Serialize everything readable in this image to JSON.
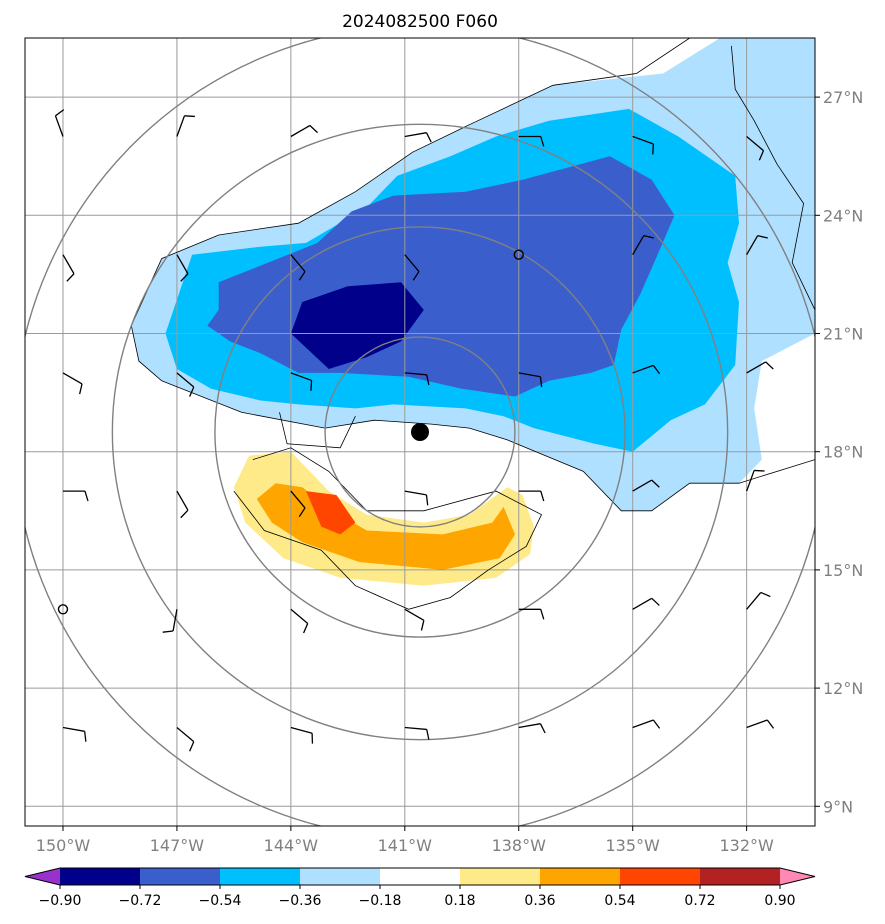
{
  "chart_data": {
    "type": "heatmap",
    "title": "2024082500 F060",
    "projection": "plate carree map",
    "grid": true,
    "xlim": [
      -151,
      -130.2
    ],
    "ylim": [
      8.5,
      28.5
    ],
    "x_ticks": [
      {
        "value": -150,
        "label": "150°W"
      },
      {
        "value": -147,
        "label": "147°W"
      },
      {
        "value": -144,
        "label": "144°W"
      },
      {
        "value": -141,
        "label": "141°W"
      },
      {
        "value": -138,
        "label": "138°W"
      },
      {
        "value": -135,
        "label": "135°W"
      },
      {
        "value": -132,
        "label": "132°W"
      }
    ],
    "y_ticks": [
      {
        "value": 9,
        "label": "9°N"
      },
      {
        "value": 12,
        "label": "12°N"
      },
      {
        "value": 15,
        "label": "15°N"
      },
      {
        "value": 18,
        "label": "18°N"
      },
      {
        "value": 21,
        "label": "21°N"
      },
      {
        "value": 24,
        "label": "24°N"
      },
      {
        "value": 27,
        "label": "27°N"
      }
    ],
    "center": {
      "lon": -140.6,
      "lat": 18.5
    },
    "range_rings_deg": [
      2.5,
      5.4,
      8.1,
      10.7
    ],
    "colorbar": {
      "orientation": "horizontal",
      "extend": "both",
      "levels": [
        -0.9,
        -0.72,
        -0.54,
        -0.36,
        -0.18,
        0.18,
        0.36,
        0.54,
        0.72,
        0.9
      ],
      "tick_labels": [
        "−0.90",
        "−0.72",
        "−0.54",
        "−0.36",
        "−0.18",
        "0.18",
        "0.36",
        "0.54",
        "0.72",
        "0.90"
      ],
      "colors": [
        "#9932cc",
        "#00008b",
        "#3a5fcd",
        "#00bfff",
        "#b0e0ff",
        "#ffffff",
        "#ffea8a",
        "#ffa500",
        "#ff4500",
        "#b22222",
        "#ff88b4"
      ]
    },
    "filled_contours": [
      {
        "level": -0.18,
        "color": "#b0e0ff",
        "polygons": [
          [
            [
              -148.2,
              21.2
            ],
            [
              -147.4,
              22.9
            ],
            [
              -145.9,
              23.5
            ],
            [
              -143.8,
              23.8
            ],
            [
              -142.3,
              24.6
            ],
            [
              -140.8,
              25.6
            ],
            [
              -139.3,
              26.3
            ],
            [
              -137.1,
              27.3
            ],
            [
              -134.2,
              27.6
            ],
            [
              -132.7,
              28.5
            ],
            [
              -130.2,
              28.5
            ],
            [
              -130.2,
              21.0
            ],
            [
              -130.8,
              20.7
            ],
            [
              -131.6,
              20.3
            ],
            [
              -131.8,
              19.1
            ],
            [
              -131.6,
              17.8
            ],
            [
              -132.2,
              17.2
            ],
            [
              -133.5,
              17.2
            ],
            [
              -134.5,
              16.5
            ],
            [
              -135.3,
              16.5
            ],
            [
              -136.3,
              17.5
            ],
            [
              -138.3,
              18.3
            ],
            [
              -139.3,
              18.6
            ],
            [
              -140.3,
              18.7
            ],
            [
              -141.8,
              18.8
            ],
            [
              -143.1,
              18.6
            ],
            [
              -145.3,
              19.0
            ],
            [
              -147.4,
              19.8
            ],
            [
              -148.0,
              20.3
            ]
          ]
        ]
      },
      {
        "level": -0.36,
        "color": "#00bfff",
        "polygons": [
          [
            [
              -147.3,
              21.0
            ],
            [
              -146.6,
              23.0
            ],
            [
              -144.8,
              23.2
            ],
            [
              -143.6,
              23.3
            ],
            [
              -142.0,
              24.2
            ],
            [
              -141.2,
              25.0
            ],
            [
              -139.8,
              25.5
            ],
            [
              -138.6,
              26.0
            ],
            [
              -137.2,
              26.4
            ],
            [
              -135.1,
              26.7
            ],
            [
              -133.8,
              26.0
            ],
            [
              -132.3,
              25.0
            ],
            [
              -132.2,
              23.8
            ],
            [
              -132.5,
              22.8
            ],
            [
              -132.2,
              21.8
            ],
            [
              -132.3,
              20.2
            ],
            [
              -133.1,
              19.2
            ],
            [
              -134.0,
              18.8
            ],
            [
              -135.0,
              18.0
            ],
            [
              -136.0,
              18.2
            ],
            [
              -137.6,
              18.6
            ],
            [
              -138.4,
              18.9
            ],
            [
              -139.4,
              19.1
            ],
            [
              -141.3,
              19.2
            ],
            [
              -142.3,
              19.1
            ],
            [
              -143.8,
              19.2
            ],
            [
              -144.8,
              19.3
            ],
            [
              -146.1,
              19.6
            ],
            [
              -147.0,
              20.1
            ]
          ]
        ]
      },
      {
        "level": -0.54,
        "color": "#3a5fcd",
        "polygons": [
          [
            [
              -146.2,
              21.2
            ],
            [
              -145.9,
              21.6
            ],
            [
              -145.9,
              22.3
            ],
            [
              -144.6,
              22.8
            ],
            [
              -143.3,
              23.3
            ],
            [
              -142.4,
              24.1
            ],
            [
              -141.3,
              24.5
            ],
            [
              -139.4,
              24.6
            ],
            [
              -137.9,
              24.9
            ],
            [
              -135.6,
              25.5
            ],
            [
              -134.5,
              24.9
            ],
            [
              -133.9,
              24.0
            ],
            [
              -134.3,
              23.1
            ],
            [
              -134.8,
              22.0
            ],
            [
              -135.3,
              21.1
            ],
            [
              -135.5,
              20.2
            ],
            [
              -136.1,
              20.0
            ],
            [
              -137.2,
              19.8
            ],
            [
              -138.1,
              19.4
            ],
            [
              -139.5,
              19.6
            ],
            [
              -140.9,
              19.9
            ],
            [
              -142.7,
              20.0
            ],
            [
              -143.8,
              20.0
            ],
            [
              -144.8,
              20.5
            ],
            [
              -145.6,
              20.8
            ]
          ]
        ]
      },
      {
        "level": -0.72,
        "color": "#00008b",
        "polygons": [
          [
            [
              -144.0,
              21.0
            ],
            [
              -143.7,
              21.8
            ],
            [
              -142.5,
              22.2
            ],
            [
              -141.1,
              22.3
            ],
            [
              -140.5,
              21.6
            ],
            [
              -141.1,
              20.8
            ],
            [
              -142.0,
              20.4
            ],
            [
              -143.0,
              20.1
            ]
          ]
        ]
      },
      {
        "level": 0.18,
        "color": "#ffea8a",
        "polygons": [
          [
            [
              -145.5,
              17.1
            ],
            [
              -145.1,
              17.9
            ],
            [
              -144.0,
              18.0
            ],
            [
              -143.0,
              17.0
            ],
            [
              -142.0,
              16.4
            ],
            [
              -140.5,
              16.2
            ],
            [
              -139.3,
              16.4
            ],
            [
              -138.3,
              17.1
            ],
            [
              -137.9,
              16.9
            ],
            [
              -137.6,
              16.1
            ],
            [
              -137.7,
              15.4
            ],
            [
              -138.6,
              14.8
            ],
            [
              -140.5,
              14.6
            ],
            [
              -142.7,
              14.8
            ],
            [
              -144.2,
              15.3
            ],
            [
              -145.2,
              16.2
            ]
          ]
        ]
      },
      {
        "level": 0.36,
        "color": "#ffa500",
        "polygons": [
          [
            [
              -144.9,
              16.8
            ],
            [
              -144.4,
              17.2
            ],
            [
              -143.7,
              17.1
            ],
            [
              -142.9,
              16.5
            ],
            [
              -142.0,
              16.0
            ],
            [
              -140.0,
              15.9
            ],
            [
              -138.7,
              16.2
            ],
            [
              -138.4,
              16.6
            ],
            [
              -138.1,
              15.9
            ],
            [
              -138.5,
              15.3
            ],
            [
              -140.0,
              15.0
            ],
            [
              -142.2,
              15.2
            ],
            [
              -143.7,
              15.7
            ],
            [
              -144.5,
              16.2
            ]
          ]
        ]
      },
      {
        "level": 0.54,
        "color": "#ff4500",
        "polygons": [
          [
            [
              -143.6,
              17.0
            ],
            [
              -142.8,
              16.9
            ],
            [
              -142.3,
              16.2
            ],
            [
              -142.7,
              15.9
            ],
            [
              -143.2,
              16.1
            ]
          ]
        ]
      }
    ],
    "contour_lines": [
      [
        [
          -148.2,
          21.2
        ],
        [
          -147.4,
          22.9
        ],
        [
          -145.9,
          23.5
        ],
        [
          -143.8,
          23.8
        ],
        [
          -142.3,
          24.6
        ],
        [
          -140.8,
          25.6
        ],
        [
          -139.3,
          26.3
        ],
        [
          -137.1,
          27.3
        ],
        [
          -134.9,
          27.6
        ],
        [
          -133.5,
          28.5
        ]
      ],
      [
        [
          -132.4,
          28.3
        ],
        [
          -132.3,
          27.2
        ],
        [
          -131.8,
          26.4
        ],
        [
          -131.2,
          25.3
        ],
        [
          -130.5,
          24.3
        ],
        [
          -130.8,
          22.8
        ],
        [
          -130.2,
          21.6
        ]
      ],
      [
        [
          -130.2,
          17.8
        ],
        [
          -132.2,
          17.2
        ],
        [
          -133.5,
          17.2
        ],
        [
          -134.5,
          16.5
        ],
        [
          -135.3,
          16.5
        ],
        [
          -136.3,
          17.5
        ],
        [
          -138.3,
          18.3
        ],
        [
          -139.3,
          18.6
        ],
        [
          -140.3,
          18.7
        ],
        [
          -141.8,
          18.8
        ],
        [
          -143.1,
          18.6
        ],
        [
          -145.3,
          19.0
        ],
        [
          -147.4,
          19.8
        ],
        [
          -148.0,
          20.3
        ],
        [
          -148.2,
          21.2
        ]
      ],
      [
        [
          -144.3,
          19.0
        ],
        [
          -144.1,
          18.2
        ],
        [
          -142.7,
          18.1
        ],
        [
          -142.3,
          18.9
        ]
      ],
      [
        [
          -145.5,
          17.0
        ],
        [
          -144.7,
          16.0
        ],
        [
          -143.2,
          15.5
        ],
        [
          -142.3,
          14.6
        ],
        [
          -140.9,
          14.0
        ],
        [
          -139.8,
          14.3
        ],
        [
          -138.8,
          15.0
        ],
        [
          -137.8,
          15.6
        ],
        [
          -137.4,
          16.4
        ],
        [
          -138.6,
          17.0
        ],
        [
          -140.5,
          16.5
        ],
        [
          -142.0,
          16.5
        ],
        [
          -143.0,
          17.5
        ],
        [
          -144.0,
          18.1
        ],
        [
          -145.0,
          17.8
        ]
      ]
    ],
    "station_marks": [
      {
        "lon": -138.0,
        "lat": 23.0
      },
      {
        "lon": -150.0,
        "lat": 14.0
      }
    ],
    "wind_barbs": [
      {
        "lon": -150,
        "lat": 26.0,
        "dir": 340
      },
      {
        "lon": -147,
        "lat": 26.0,
        "dir": 20
      },
      {
        "lon": -144,
        "lat": 26.0,
        "dir": 60
      },
      {
        "lon": -141,
        "lat": 26.0,
        "dir": 80
      },
      {
        "lon": -138,
        "lat": 26.0,
        "dir": 90
      },
      {
        "lon": -135,
        "lat": 26.0,
        "dir": 110
      },
      {
        "lon": -132,
        "lat": 26.0,
        "dir": 130
      },
      {
        "lon": -150,
        "lat": 23.0,
        "dir": 150
      },
      {
        "lon": -147,
        "lat": 23.0,
        "dir": 150
      },
      {
        "lon": -144,
        "lat": 23.0,
        "dir": 140
      },
      {
        "lon": -141,
        "lat": 23.0,
        "dir": 140
      },
      {
        "lon": -135,
        "lat": 23.0,
        "dir": 30
      },
      {
        "lon": -132,
        "lat": 23.0,
        "dir": 30
      },
      {
        "lon": -150,
        "lat": 20.0,
        "dir": 120
      },
      {
        "lon": -147,
        "lat": 20.0,
        "dir": 130
      },
      {
        "lon": -144,
        "lat": 20.0,
        "dir": 110
      },
      {
        "lon": -141,
        "lat": 20.0,
        "dir": 95
      },
      {
        "lon": -138,
        "lat": 20.0,
        "dir": 100
      },
      {
        "lon": -135,
        "lat": 20.0,
        "dir": 70
      },
      {
        "lon": -132,
        "lat": 20.0,
        "dir": 60
      },
      {
        "lon": -150,
        "lat": 17.0,
        "dir": 90
      },
      {
        "lon": -147,
        "lat": 17.0,
        "dir": 150
      },
      {
        "lon": -144,
        "lat": 17.0,
        "dir": 140
      },
      {
        "lon": -141,
        "lat": 17.0,
        "dir": 100
      },
      {
        "lon": -138,
        "lat": 17.0,
        "dir": 90
      },
      {
        "lon": -135,
        "lat": 17.0,
        "dir": 60
      },
      {
        "lon": -132,
        "lat": 17.0,
        "dir": 20
      },
      {
        "lon": -147,
        "lat": 14.0,
        "dir": 190
      },
      {
        "lon": -144,
        "lat": 14.0,
        "dir": 130
      },
      {
        "lon": -141,
        "lat": 14.0,
        "dir": 120
      },
      {
        "lon": -138,
        "lat": 14.0,
        "dir": 90
      },
      {
        "lon": -135,
        "lat": 14.0,
        "dir": 60
      },
      {
        "lon": -132,
        "lat": 14.0,
        "dir": 40
      },
      {
        "lon": -150,
        "lat": 11.0,
        "dir": 100
      },
      {
        "lon": -147,
        "lat": 11.0,
        "dir": 130
      },
      {
        "lon": -144,
        "lat": 11.0,
        "dir": 105
      },
      {
        "lon": -141,
        "lat": 11.0,
        "dir": 95
      },
      {
        "lon": -138,
        "lat": 11.0,
        "dir": 80
      },
      {
        "lon": -135,
        "lat": 11.0,
        "dir": 70
      },
      {
        "lon": -132,
        "lat": 11.0,
        "dir": 70
      }
    ]
  }
}
